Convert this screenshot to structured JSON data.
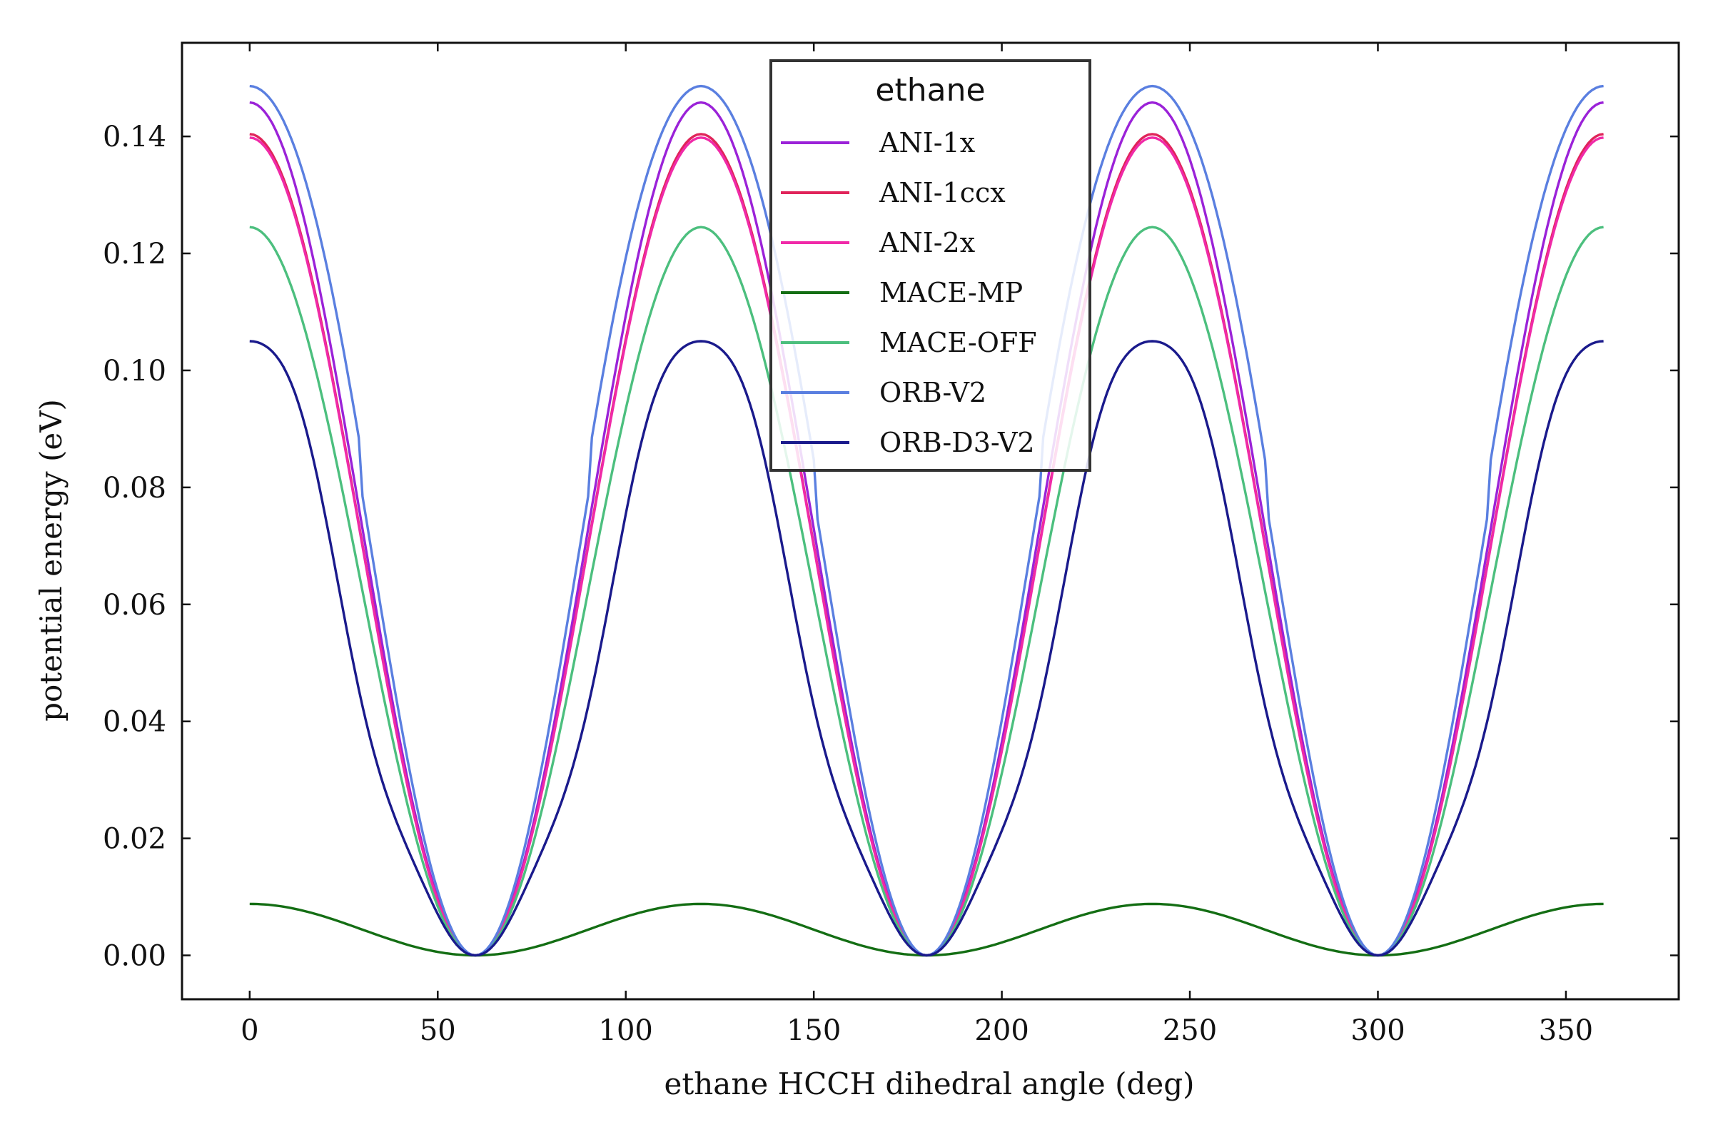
{
  "chart_data": {
    "type": "line",
    "xlabel": "ethane HCCH dihedral angle (deg)",
    "ylabel": "potential energy (eV)",
    "xlim": [
      -18,
      380
    ],
    "ylim": [
      -0.0075,
      0.156
    ],
    "xticks": [
      0,
      50,
      100,
      150,
      200,
      250,
      300,
      350
    ],
    "xtick_labels": [
      "0",
      "50",
      "100",
      "150",
      "200",
      "250",
      "300",
      "350"
    ],
    "yticks": [
      0.0,
      0.02,
      0.04,
      0.06,
      0.08,
      0.1,
      0.12,
      0.14
    ],
    "ytick_labels": [
      "0.00",
      "0.02",
      "0.04",
      "0.06",
      "0.08",
      "0.10",
      "0.12",
      "0.14"
    ],
    "grid": false,
    "legend": {
      "title": "ethane",
      "placement": "upper-center"
    },
    "x_range": [
      0,
      360
    ],
    "minima_x": [
      60,
      180,
      300
    ],
    "maxima_x": [
      0,
      120,
      240,
      360
    ],
    "series": [
      {
        "name": "ANI-1x",
        "color": "#9b22d8",
        "peak": 0.1458,
        "shape": "cosine"
      },
      {
        "name": "ANI-1ccx",
        "color": "#e0245a",
        "peak": 0.1404,
        "shape": "cosine"
      },
      {
        "name": "ANI-2x",
        "color": "#f02aa8",
        "peak": 0.1398,
        "shape": "cosine"
      },
      {
        "name": "MACE-MP",
        "color": "#146e14",
        "peak": 0.0088,
        "shape": "cosine"
      },
      {
        "name": "MACE-OFF",
        "color": "#4cbf7e",
        "peak": 0.1245,
        "shape": "cosine"
      },
      {
        "name": "ORB-V2",
        "color": "#5a7fe0",
        "peak": 0.1486,
        "shape": "broad"
      },
      {
        "name": "ORB-D3-V2",
        "color": "#1a1a8c",
        "peak": 0.105,
        "shape": "rippled"
      }
    ]
  }
}
